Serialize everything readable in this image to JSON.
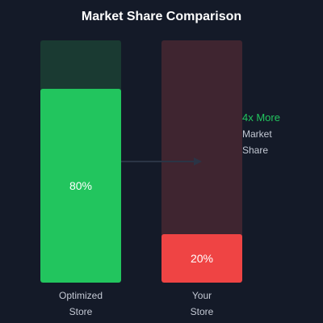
{
  "chart_data": {
    "type": "bar",
    "title": "Market Share Comparison",
    "categories": [
      [
        "Optimized",
        "Store"
      ],
      [
        "Your",
        "Store"
      ]
    ],
    "values": [
      80,
      20
    ],
    "value_labels": [
      "80%",
      "20%"
    ],
    "ylim": [
      0,
      100
    ],
    "colors": {
      "bars": [
        "#22c55e",
        "#ef4444"
      ],
      "tracks": [
        "#1a3a32",
        "#3f2530"
      ]
    },
    "annotation": {
      "lines": [
        "4x More",
        "Market",
        "Share"
      ]
    }
  }
}
